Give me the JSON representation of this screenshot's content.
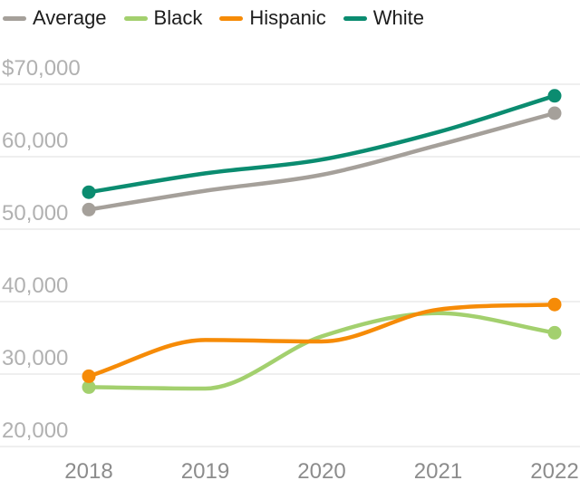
{
  "chart_data": {
    "type": "line",
    "x": [
      2018,
      2019,
      2020,
      2021,
      2022
    ],
    "series": [
      {
        "name": "Average",
        "color": "#a5a09a",
        "values": [
          52700,
          55300,
          57500,
          61600,
          66000
        ]
      },
      {
        "name": "Black",
        "color": "#a3d06e",
        "values": [
          28200,
          28000,
          35200,
          38400,
          35700
        ]
      },
      {
        "name": "Hispanic",
        "color": "#f68b07",
        "values": [
          29700,
          34700,
          34500,
          38900,
          39600
        ]
      },
      {
        "name": "White",
        "color": "#0b8c70",
        "values": [
          55100,
          57700,
          59600,
          63400,
          68400
        ]
      }
    ],
    "title": "",
    "xlabel": "",
    "ylabel": "",
    "ylim": [
      20000,
      70000
    ],
    "yticks": [
      70000,
      60000,
      50000,
      40000,
      30000,
      20000
    ],
    "ytick_labels": [
      "$70,000",
      "60,000",
      "50,000",
      "40,000",
      "30,000",
      "20,000"
    ],
    "xtick_labels": [
      "2018",
      "2019",
      "2020",
      "2021",
      "2022"
    ],
    "grid": true,
    "legend_position": "top-left",
    "endpoint_dots": true,
    "draw_order": [
      "Average",
      "Black",
      "White",
      "Hispanic"
    ]
  },
  "colors": {
    "gridline": "#e5e5e5",
    "ytick_text": "#b1b1b1",
    "xtick_text": "#8c8c8c",
    "legend_text": "#1d1d1d",
    "background": "#ffffff"
  }
}
